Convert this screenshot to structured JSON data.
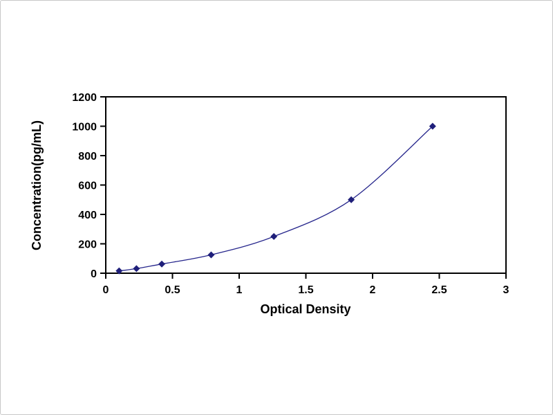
{
  "chart_data": {
    "type": "line",
    "title": "",
    "xlabel": "Optical Density",
    "ylabel": "Concentration(pg/mL)",
    "xlim": [
      0,
      3
    ],
    "ylim": [
      0,
      1200
    ],
    "x_ticks": [
      0,
      0.5,
      1,
      1.5,
      2,
      2.5,
      3
    ],
    "x_tick_labels": [
      "0",
      "0.5",
      "1",
      "1.5",
      "2",
      "2.5",
      "3"
    ],
    "y_ticks": [
      0,
      200,
      400,
      600,
      800,
      1000,
      1200
    ],
    "y_tick_labels": [
      "0",
      "200",
      "400",
      "600",
      "800",
      "1000",
      "1200"
    ],
    "grid": false,
    "legend": "none",
    "marker": "diamond",
    "line_color": "#26268c",
    "marker_color": "#1f1f7a",
    "frame_color": "#000000",
    "series": [
      {
        "name": "standard-curve",
        "x": [
          0.1,
          0.23,
          0.42,
          0.79,
          1.26,
          1.84,
          2.45
        ],
        "y": [
          15.6,
          31.2,
          62.5,
          125,
          250,
          500,
          1000
        ]
      }
    ]
  }
}
